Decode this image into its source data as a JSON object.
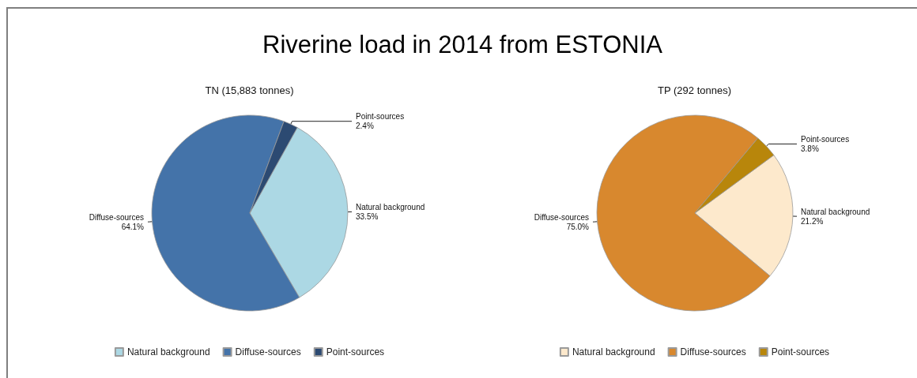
{
  "chart_data": [
    {
      "type": "other",
      "title": "Riverine load in 2014 from ESTONIA"
    },
    {
      "type": "pie",
      "title": "TN (15,883 tonnes)",
      "categories": [
        "Natural background",
        "Diffuse-sources",
        "Point-sources"
      ],
      "values": [
        33.5,
        64.1,
        2.4
      ],
      "value_labels": [
        "33.5%",
        "64.1%",
        "2.4%"
      ],
      "colors": [
        "#acd8e4",
        "#4473a9",
        "#2c4a72"
      ],
      "legend": "bottom"
    },
    {
      "type": "pie",
      "title": "TP (292 tonnes)",
      "categories": [
        "Natural background",
        "Diffuse-sources",
        "Point-sources"
      ],
      "values": [
        21.2,
        75.0,
        3.8
      ],
      "value_labels": [
        "21.2%",
        "75.0%",
        "3.8%"
      ],
      "colors": [
        "#fde9cc",
        "#d8882e",
        "#b8860b"
      ],
      "legend": "bottom"
    }
  ]
}
